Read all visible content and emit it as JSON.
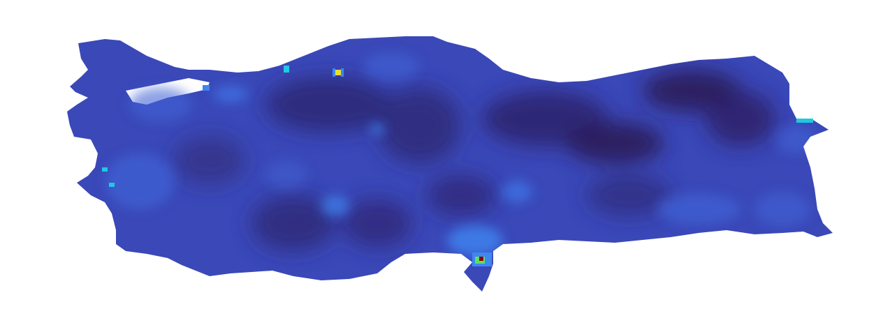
{
  "map": {
    "region": "Turkey",
    "colormap": "turbo",
    "palette": {
      "lowest": "#2a1a5c",
      "low": "#30287a",
      "base": "#3a48b8",
      "mid": "#3f63d6",
      "bright": "#3f86f0",
      "high_cyan": "#20c8e0",
      "high_green": "#60e060",
      "high_yellow": "#e8e030",
      "peak": "#8b0000",
      "background": "#ffffff"
    },
    "hotspots": [
      {
        "name": "hotspot-adana-south",
        "level": "peak"
      },
      {
        "name": "hotspot-iskenderun",
        "level": "high_green"
      },
      {
        "name": "hotspot-black-sea-coast",
        "level": "high_yellow"
      },
      {
        "name": "hotspot-northwest-coast",
        "level": "high_cyan"
      },
      {
        "name": "hotspot-aegean-coast",
        "level": "high_cyan"
      },
      {
        "name": "hotspot-east-border",
        "level": "high_cyan"
      }
    ]
  }
}
